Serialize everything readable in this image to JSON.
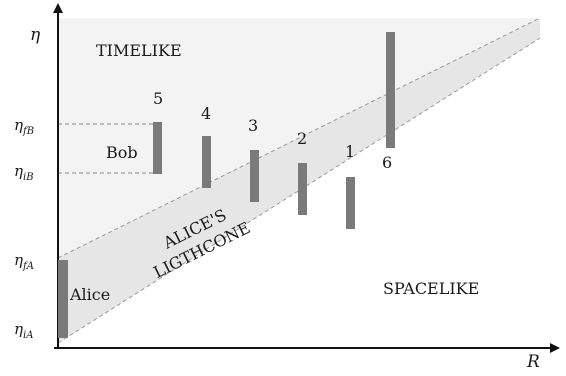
{
  "axes": {
    "y_label": "η",
    "x_label": "R",
    "y_ticks": [
      {
        "main": "η",
        "sub": "fB"
      },
      {
        "main": "η",
        "sub": "iB"
      },
      {
        "main": "η",
        "sub": "fA"
      },
      {
        "main": "η",
        "sub": "iA"
      }
    ]
  },
  "regions": {
    "timelike": "TIMELIKE",
    "spacelike": "SPACELIKE",
    "lightcone_line1": "ALICE'S",
    "lightcone_line2": "LIGTHCONE"
  },
  "observers": {
    "alice": "Alice",
    "bob": "Bob"
  },
  "detectors": [
    "5",
    "4",
    "3",
    "2",
    "1",
    "6"
  ],
  "colors": {
    "timelike_fill": "#f3f3f3",
    "lightcone_fill": "#e6e6e6",
    "bar": "#7a7a7a",
    "axis": "#111111",
    "dashed": "#8a8a8a"
  }
}
